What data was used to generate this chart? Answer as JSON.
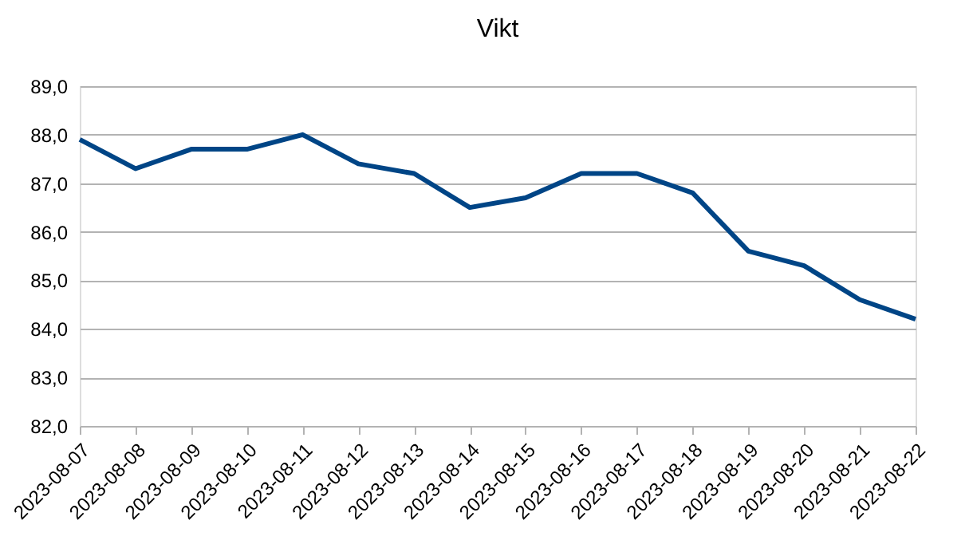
{
  "chart_data": {
    "type": "line",
    "title": "Vikt",
    "categories": [
      "2023-08-07",
      "2023-08-08",
      "2023-08-09",
      "2023-08-10",
      "2023-08-11",
      "2023-08-12",
      "2023-08-13",
      "2023-08-14",
      "2023-08-15",
      "2023-08-16",
      "2023-08-17",
      "2023-08-18",
      "2023-08-19",
      "2023-08-20",
      "2023-08-21",
      "2023-08-22"
    ],
    "series": [
      {
        "color": "#004586",
        "values": [
          87.9,
          87.3,
          87.7,
          87.7,
          88.0,
          87.4,
          87.2,
          86.5,
          86.7,
          87.2,
          87.2,
          86.8,
          85.6,
          85.3,
          84.6,
          84.2
        ]
      }
    ],
    "ylim": [
      82,
      89
    ],
    "yticks": [
      {
        "value": 82,
        "label": "82,0"
      },
      {
        "value": 83,
        "label": "83,0"
      },
      {
        "value": 84,
        "label": "84,0"
      },
      {
        "value": 85,
        "label": "85,0"
      },
      {
        "value": 86,
        "label": "86,0"
      },
      {
        "value": 87,
        "label": "87,0"
      },
      {
        "value": 88,
        "label": "88,0"
      },
      {
        "value": 89,
        "label": "89,0"
      }
    ],
    "grid": "y",
    "marker": "none",
    "line_style": "solid"
  }
}
